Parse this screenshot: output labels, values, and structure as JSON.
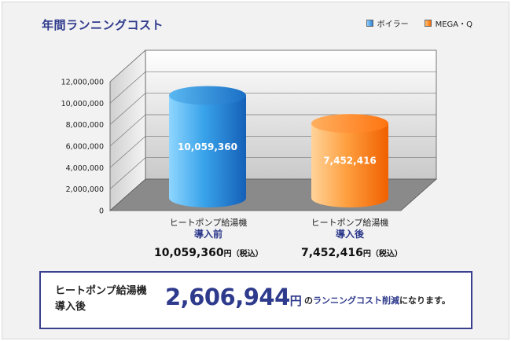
{
  "title": "年間ランニングコスト",
  "legend": [
    {
      "label": "ボイラー",
      "color": "#2f7fd0"
    },
    {
      "label": "MEGA・Q",
      "color": "#ff7a1a"
    }
  ],
  "chart_data": {
    "type": "bar",
    "style": "3d-cylinder",
    "categories": [
      "ヒートポンプ給湯機 導入前",
      "ヒートポンプ給湯機 導入後"
    ],
    "series": [
      {
        "name": "ボイラー",
        "values": [
          10059360,
          null
        ],
        "color": "#2f7fd0"
      },
      {
        "name": "MEGA・Q",
        "values": [
          null,
          7452416
        ],
        "color": "#ff7a1a"
      }
    ],
    "data_labels": [
      "10,059,360",
      "7,452,416"
    ],
    "y_ticks": [
      "0",
      "2,000,000",
      "4,000,000",
      "6,000,000",
      "8,000,000",
      "10,000,000",
      "12,000,000"
    ],
    "ylim": [
      0,
      12000000
    ],
    "grid": true,
    "legend_position": "top-right"
  },
  "categories": [
    {
      "line1": "ヒートポンプ給湯機",
      "line2": "導入前",
      "total": "10,059,360",
      "unit": "円（税込）"
    },
    {
      "line1": "ヒートポンプ給湯機",
      "line2": "導入後",
      "total": "7,452,416",
      "unit": "円（税込）"
    }
  ],
  "summary": {
    "label_line1": "ヒートポンプ給湯機",
    "label_line2": "導入後",
    "value": "2,606,944",
    "unit": "円",
    "tail_pre": "の",
    "tail_highlight": "ランニングコスト削減",
    "tail_post": "になります。"
  }
}
